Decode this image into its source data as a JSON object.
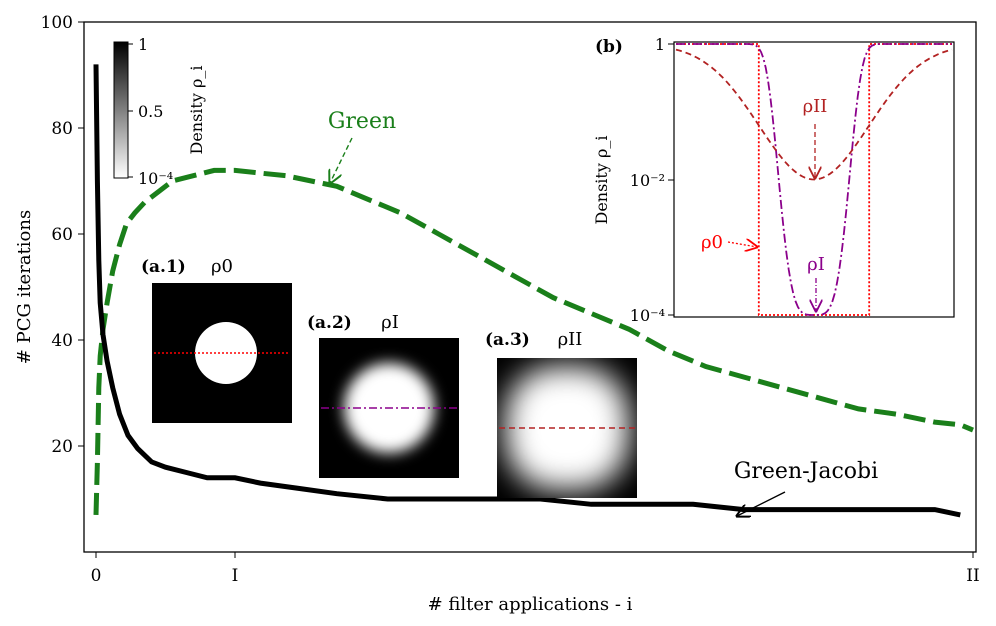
{
  "chart_data": {
    "type": "line",
    "xlabel": "# filter applications - i",
    "ylabel": "# PCG iterations",
    "x_ticks": [
      "0",
      "I",
      "II"
    ],
    "y_ticks": [
      20,
      40,
      60,
      80,
      100
    ],
    "ylim": [
      0,
      100
    ],
    "series": [
      {
        "name": "Green",
        "label": "Green",
        "color": "#1a7f1a",
        "style": "dashed",
        "points": [
          [
            0,
            7
          ],
          [
            0.01,
            17
          ],
          [
            0.02,
            31
          ],
          [
            0.03,
            37
          ],
          [
            0.05,
            42
          ],
          [
            0.08,
            47
          ],
          [
            0.12,
            53
          ],
          [
            0.17,
            58
          ],
          [
            0.22,
            62
          ],
          [
            0.28,
            64
          ],
          [
            0.35,
            66
          ],
          [
            0.45,
            68
          ],
          [
            0.55,
            70
          ],
          [
            0.7,
            71
          ],
          [
            0.85,
            72
          ],
          [
            1,
            72
          ],
          [
            1.2,
            71.5
          ],
          [
            1.4,
            71
          ],
          [
            1.6,
            70
          ],
          [
            1.8,
            69
          ],
          [
            2,
            67
          ],
          [
            2.3,
            64
          ],
          [
            2.6,
            60
          ],
          [
            2.9,
            56
          ],
          [
            3.2,
            52
          ],
          [
            3.5,
            48
          ],
          [
            3.8,
            45
          ],
          [
            4.1,
            42
          ],
          [
            4.4,
            38
          ],
          [
            4.7,
            35
          ],
          [
            5,
            33
          ],
          [
            5.3,
            31
          ],
          [
            5.6,
            29
          ],
          [
            5.9,
            27
          ],
          [
            6.2,
            26
          ],
          [
            6.5,
            24.5
          ],
          [
            6.7,
            24
          ],
          [
            6.8,
            23
          ]
        ]
      },
      {
        "name": "Green-Jacobi",
        "label": "Green-Jacobi",
        "color": "#000000",
        "style": "solid",
        "points": [
          [
            0,
            92
          ],
          [
            0.01,
            70
          ],
          [
            0.02,
            55
          ],
          [
            0.03,
            47
          ],
          [
            0.05,
            41
          ],
          [
            0.08,
            36
          ],
          [
            0.12,
            31
          ],
          [
            0.17,
            26
          ],
          [
            0.23,
            22
          ],
          [
            0.3,
            19.5
          ],
          [
            0.4,
            17
          ],
          [
            0.5,
            16
          ],
          [
            0.65,
            15
          ],
          [
            0.8,
            14
          ],
          [
            1,
            14
          ],
          [
            1.2,
            13
          ],
          [
            1.5,
            12
          ],
          [
            1.8,
            11
          ],
          [
            2.2,
            10
          ],
          [
            2.6,
            10
          ],
          [
            3,
            10
          ],
          [
            3.4,
            10
          ],
          [
            3.8,
            9
          ],
          [
            4.2,
            9
          ],
          [
            4.6,
            9
          ],
          [
            5,
            8
          ],
          [
            5.5,
            8
          ],
          [
            6,
            8
          ],
          [
            6.5,
            8
          ],
          [
            6.7,
            7
          ]
        ]
      }
    ],
    "annotations": {
      "green_label": "Green",
      "jacobi_label": "Green-Jacobi"
    },
    "colorbar": {
      "label": "Density ρ_i",
      "ticks": [
        "1",
        "0.5",
        "10⁻⁴"
      ]
    },
    "insets": [
      {
        "tag": "(a.1)",
        "title": "ρ0",
        "line_color": "#ff0000",
        "style": "dotted",
        "blur": 0
      },
      {
        "tag": "(a.2)",
        "title": "ρI",
        "line_color": "#8b008b",
        "style": "dashdot",
        "blur": 2.2
      },
      {
        "tag": "(a.3)",
        "title": "ρII",
        "line_color": "#b22222",
        "style": "dashed",
        "blur": 5
      }
    ],
    "inset_b": {
      "tag": "(b)",
      "type": "line",
      "ylabel": "Density ρ_i",
      "yscale": "log",
      "ylim": [
        0.0001,
        1
      ],
      "y_ticks": [
        "1",
        "10⁻²",
        "10⁻⁴"
      ],
      "labels": {
        "rho0": "ρ0",
        "rhoI": "ρI",
        "rhoII": "ρII"
      },
      "series": [
        {
          "name": "ρ0",
          "color": "#ff0000",
          "style": "dotted",
          "profile": "step",
          "min": 0.0001
        },
        {
          "name": "ρI",
          "color": "#8b008b",
          "style": "dashdot",
          "profile": "narrow",
          "min": 0.0001
        },
        {
          "name": "ρII",
          "color": "#b22222",
          "style": "dashed",
          "profile": "wide",
          "min": 0.01
        }
      ]
    }
  }
}
